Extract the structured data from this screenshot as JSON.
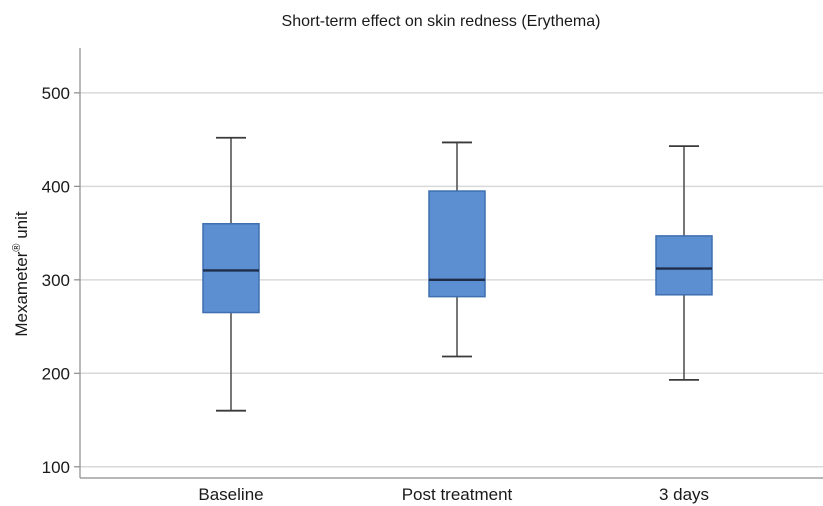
{
  "chart_data": {
    "type": "boxplot",
    "title": "Short-term effect on skin redness (Erythema)",
    "ylabel": "Mexameter",
    "ylabel_superscript": "®",
    "ylabel_suffix": " unit",
    "xlabel": "",
    "ylim": [
      88,
      548
    ],
    "yticks": [
      100,
      200,
      300,
      400,
      500
    ],
    "grid": true,
    "categories": [
      "Baseline",
      "Post treatment",
      "3 days"
    ],
    "boxes": [
      {
        "category": "Baseline",
        "min": 160,
        "q1": 265,
        "median": 310,
        "q3": 360,
        "max": 452
      },
      {
        "category": "Post treatment",
        "min": 218,
        "q1": 282,
        "median": 300,
        "q3": 395,
        "max": 447
      },
      {
        "category": "3 days",
        "min": 193,
        "q1": 284,
        "median": 312,
        "q3": 347,
        "max": 443
      }
    ],
    "box_color": "#5b8fd1",
    "median_color": "#1f2d4a"
  }
}
